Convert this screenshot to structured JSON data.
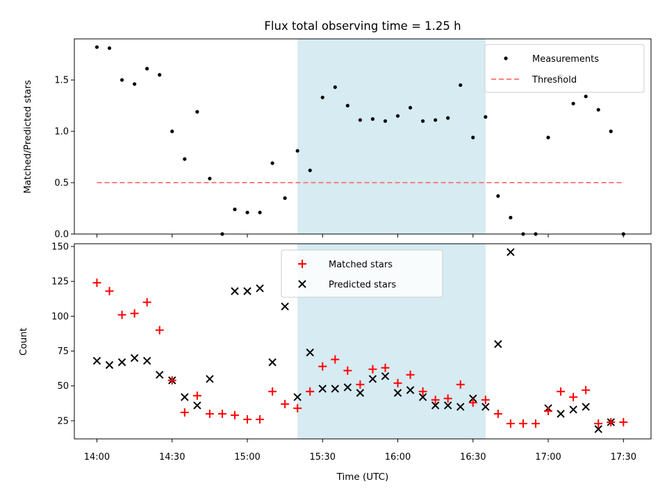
{
  "chart_data": [
    {
      "type": "scatter",
      "title": "Flux total observing time = 1.25 h",
      "xlabel": "",
      "ylabel": "Matched/Predicted stars",
      "ylim": [
        0,
        1.9
      ],
      "xlim": [
        "13:51",
        "17:41"
      ],
      "yticks": [
        "0.0",
        "0.5",
        "1.0",
        "1.5"
      ],
      "highlight": {
        "start": "15:20",
        "end": "16:35",
        "color": "#add8e6"
      },
      "legend": {
        "position": "top-right",
        "entries": [
          "Measurements",
          "Threshold"
        ]
      },
      "series": [
        {
          "name": "Measurements",
          "marker": "dot",
          "color": "#000000",
          "x": [
            "14:00",
            "14:05",
            "14:10",
            "14:15",
            "14:20",
            "14:25",
            "14:30",
            "14:35",
            "14:40",
            "14:45",
            "14:50",
            "14:55",
            "15:00",
            "15:05",
            "15:10",
            "15:15",
            "15:20",
            "15:25",
            "15:30",
            "15:35",
            "15:40",
            "15:45",
            "15:50",
            "15:55",
            "16:00",
            "16:05",
            "16:10",
            "16:15",
            "16:20",
            "16:25",
            "16:30",
            "16:35",
            "16:40",
            "16:45",
            "16:50",
            "16:55",
            "17:00",
            "17:05",
            "17:10",
            "17:15",
            "17:20",
            "17:25",
            "17:30"
          ],
          "y": [
            1.82,
            1.81,
            1.5,
            1.46,
            1.61,
            1.55,
            1.0,
            0.73,
            1.19,
            0.54,
            0.0,
            0.24,
            0.21,
            0.21,
            0.69,
            0.35,
            0.81,
            0.62,
            1.33,
            1.43,
            1.25,
            1.11,
            1.12,
            1.1,
            1.15,
            1.23,
            1.1,
            1.11,
            1.13,
            1.45,
            0.94,
            1.14,
            0.37,
            0.16,
            0.0,
            0.0,
            0.94,
            1.54,
            1.27,
            1.34,
            1.21,
            1.0,
            0.0
          ]
        },
        {
          "name": "Threshold",
          "marker": "dashed-line",
          "color": "#ff7f7f",
          "x": [
            "14:00",
            "17:30"
          ],
          "y": [
            0.5,
            0.5
          ]
        }
      ]
    },
    {
      "type": "scatter",
      "title": "",
      "xlabel": "Time (UTC)",
      "ylabel": "Count",
      "ylim": [
        12,
        152
      ],
      "xlim": [
        "13:51",
        "17:41"
      ],
      "yticks": [
        "25",
        "50",
        "75",
        "100",
        "125",
        "150"
      ],
      "xticks": [
        "14:00",
        "14:30",
        "15:00",
        "15:30",
        "16:00",
        "16:30",
        "17:00",
        "17:30"
      ],
      "highlight": {
        "start": "15:20",
        "end": "16:35",
        "color": "#add8e6"
      },
      "legend": {
        "position": "top-center",
        "entries": [
          "Matched stars",
          "Predicted stars"
        ]
      },
      "series": [
        {
          "name": "Matched stars",
          "marker": "plus",
          "color": "#ff0000",
          "x": [
            "14:00",
            "14:05",
            "14:10",
            "14:15",
            "14:20",
            "14:25",
            "14:30",
            "14:35",
            "14:40",
            "14:45",
            "14:50",
            "14:55",
            "15:00",
            "15:05",
            "15:10",
            "15:15",
            "15:20",
            "15:25",
            "15:30",
            "15:35",
            "15:40",
            "15:45",
            "15:50",
            "15:55",
            "16:00",
            "16:05",
            "16:10",
            "16:15",
            "16:20",
            "16:25",
            "16:30",
            "16:35",
            "16:40",
            "16:45",
            "16:50",
            "16:55",
            "17:00",
            "17:05",
            "17:10",
            "17:15",
            "17:20",
            "17:25",
            "17:30"
          ],
          "y": [
            124,
            118,
            101,
            102,
            110,
            90,
            54,
            31,
            43,
            30,
            30,
            29,
            26,
            26,
            46,
            37,
            34,
            46,
            64,
            69,
            61,
            51,
            62,
            63,
            52,
            58,
            46,
            40,
            41,
            51,
            38,
            40,
            30,
            23,
            23,
            23,
            32,
            46,
            42,
            47,
            23,
            24,
            24
          ]
        },
        {
          "name": "Predicted stars",
          "marker": "x",
          "color": "#000000",
          "x": [
            "14:00",
            "14:05",
            "14:10",
            "14:15",
            "14:20",
            "14:25",
            "14:30",
            "14:35",
            "14:40",
            "14:45",
            "14:55",
            "15:00",
            "15:05",
            "15:10",
            "15:15",
            "15:20",
            "15:25",
            "15:30",
            "15:35",
            "15:40",
            "15:45",
            "15:50",
            "15:55",
            "16:00",
            "16:05",
            "16:10",
            "16:15",
            "16:20",
            "16:25",
            "16:30",
            "16:35",
            "16:40",
            "16:45",
            "17:00",
            "17:05",
            "17:10",
            "17:15",
            "17:20",
            "17:25"
          ],
          "y": [
            68,
            65,
            67,
            70,
            68,
            58,
            54,
            42,
            36,
            55,
            118,
            118,
            120,
            67,
            107,
            42,
            74,
            48,
            48,
            49,
            45,
            55,
            57,
            45,
            47,
            42,
            36,
            36,
            35,
            41,
            35,
            80,
            146,
            34,
            30,
            33,
            35,
            19,
            24
          ]
        }
      ]
    }
  ]
}
